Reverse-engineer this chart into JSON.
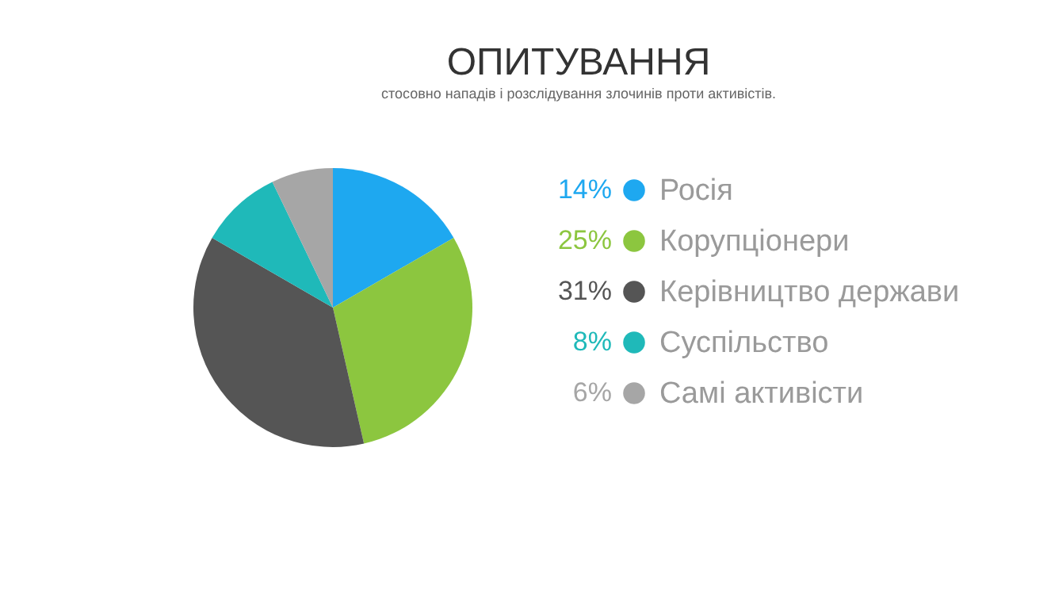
{
  "chart_data": {
    "type": "pie",
    "title": "ОПИТУВАННЯ",
    "subtitle": "стосовно нападів і розслідування злочинів проти активістів.",
    "categories": [
      "Росія",
      "Корупціонери",
      "Керівництво держави",
      "Суспільство",
      "Самі активісти"
    ],
    "values": [
      14,
      25,
      31,
      8,
      6
    ],
    "value_labels": [
      "14%",
      "25%",
      "31%",
      "8%",
      "6%"
    ],
    "colors": [
      "#1ea8f0",
      "#8cc63f",
      "#555555",
      "#1fb9b9",
      "#a6a6a6"
    ],
    "legend": "right"
  }
}
